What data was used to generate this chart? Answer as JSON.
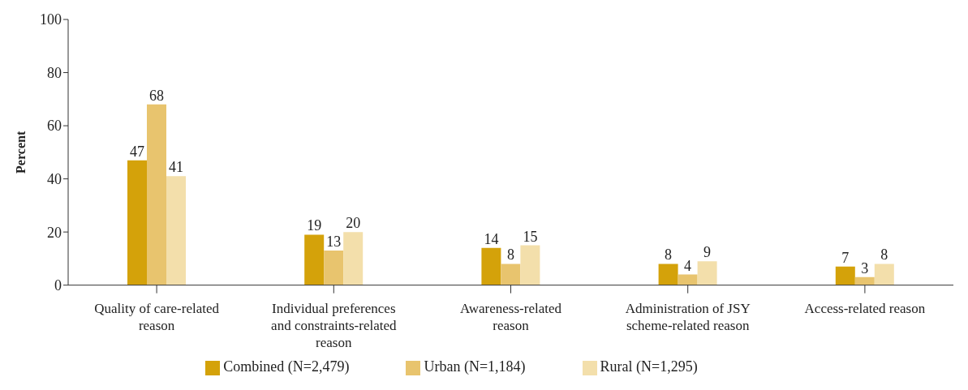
{
  "chart_data": {
    "type": "bar",
    "ylabel": "Percent",
    "categories": [
      "Quality of care-related reason",
      "Individual preferences and constraints-related reason",
      "Awareness-related reason",
      "Administration of JSY scheme-related reason",
      "Access-related reason"
    ],
    "series": [
      {
        "name": "Combined (N=2,479)",
        "color": "#d4a20a",
        "values": [
          47,
          19,
          14,
          8,
          7
        ]
      },
      {
        "name": "Urban (N=1,184)",
        "color": "#e8c46e",
        "values": [
          68,
          13,
          8,
          4,
          3
        ]
      },
      {
        "name": "Rural (N=1,295)",
        "color": "#f3dfab",
        "values": [
          41,
          20,
          15,
          9,
          8
        ]
      }
    ],
    "ylim": [
      0,
      100
    ],
    "yticks": [
      0,
      20,
      40,
      60,
      80,
      100
    ],
    "grid": false,
    "legend": "bottom",
    "data_labels": true
  }
}
